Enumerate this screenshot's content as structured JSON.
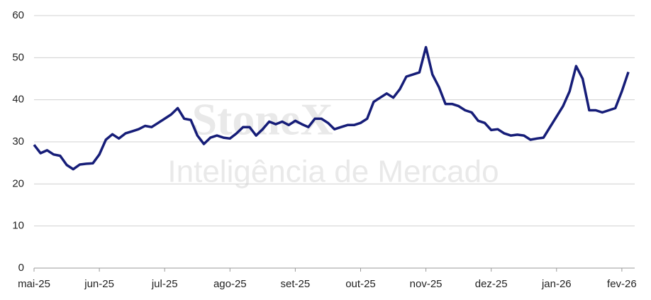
{
  "chart_data": {
    "type": "line",
    "watermark": {
      "brand": "StoneX",
      "tagline": "Inteligência de Mercado"
    },
    "categories": [
      "mai-25",
      null,
      null,
      null,
      null,
      null,
      null,
      null,
      null,
      null,
      "jun-25",
      null,
      null,
      null,
      null,
      null,
      null,
      null,
      null,
      null,
      "jul-25",
      null,
      null,
      null,
      null,
      null,
      null,
      null,
      null,
      null,
      "ago-25",
      null,
      null,
      null,
      null,
      null,
      null,
      null,
      null,
      null,
      "set-25",
      null,
      null,
      null,
      null,
      null,
      null,
      null,
      null,
      null,
      "out-25",
      null,
      null,
      null,
      null,
      null,
      null,
      null,
      null,
      null,
      "nov-25",
      null,
      null,
      null,
      null,
      null,
      null,
      null,
      null,
      null,
      "dez-25",
      null,
      null,
      null,
      null,
      null,
      null,
      null,
      null,
      null,
      "jan-26",
      null,
      null,
      null,
      null,
      null,
      null,
      null,
      null,
      null,
      "fev-26",
      null
    ],
    "series": [
      {
        "color": "#161d78",
        "values": [
          29.3,
          27.3,
          28.0,
          27.0,
          26.7,
          24.5,
          23.5,
          24.6,
          24.8,
          24.9,
          27.0,
          30.5,
          31.8,
          30.8,
          32.0,
          32.5,
          33.0,
          33.8,
          33.5,
          34.5,
          35.5,
          36.5,
          38.0,
          35.5,
          35.2,
          31.5,
          29.5,
          31.0,
          31.5,
          31.0,
          30.8,
          32.0,
          33.5,
          33.5,
          31.5,
          33.0,
          34.8,
          34.2,
          34.8,
          34.0,
          35.0,
          34.2,
          33.5,
          35.5,
          35.5,
          34.5,
          33.0,
          33.5,
          34.0,
          34.0,
          34.5,
          35.5,
          39.5,
          40.5,
          41.5,
          40.5,
          42.5,
          45.5,
          46.0,
          46.5,
          52.5,
          46.0,
          43.0,
          39.0,
          39.0,
          38.5,
          37.5,
          37.0,
          35.0,
          34.5,
          32.8,
          33.0,
          32.0,
          31.5,
          31.7,
          31.5,
          30.5,
          30.8,
          31.0,
          33.5,
          36.0,
          38.5,
          42.0,
          48.0,
          45.0,
          37.5,
          37.5,
          37.0,
          37.5,
          38.0,
          42.0,
          46.6
        ]
      }
    ],
    "ylim": [
      0,
      60
    ],
    "yticks": [
      0,
      10,
      20,
      30,
      40,
      50,
      60
    ],
    "grid": true
  }
}
